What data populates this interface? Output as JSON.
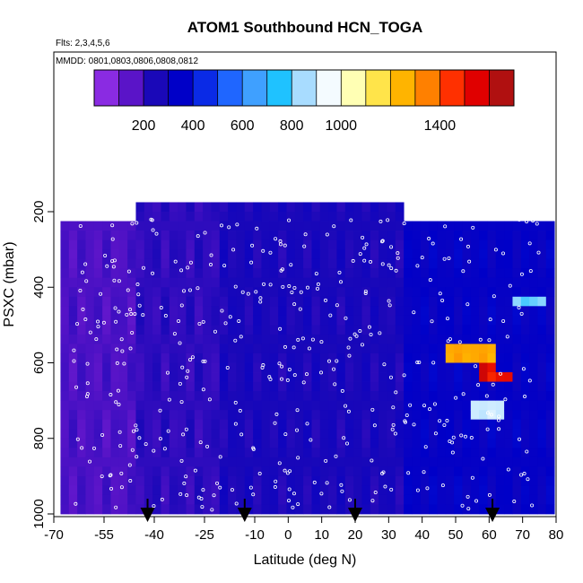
{
  "chart_data": {
    "type": "heatmap",
    "title": "ATOM1 Southbound HCN_TOGA",
    "annotations": [
      "Flts: 2,3,4,5,6",
      "MMDD: 0801,0803,0806,0808,0812"
    ],
    "xlabel": "Latitude (deg N)",
    "ylabel": "PSXC (mbar)",
    "xlim": [
      -70,
      80
    ],
    "ylim": [
      1000,
      100
    ],
    "x_ticks": [
      -70,
      -55,
      -40,
      -25,
      -10,
      0,
      10,
      20,
      30,
      40,
      50,
      60,
      70,
      80
    ],
    "y_ticks": [
      200,
      400,
      600,
      800,
      1000
    ],
    "colorbar": {
      "range": [
        0,
        1700
      ],
      "tick_values": [
        200,
        400,
        600,
        800,
        1000,
        1400
      ],
      "colors": [
        "#8a2be2",
        "#5a14c8",
        "#1a08b8",
        "#0000c8",
        "#0a2ae6",
        "#1f66ff",
        "#3fa0ff",
        "#1fc2ff",
        "#a8dcff",
        "#f4fbff",
        "#ffffb4",
        "#ffe44a",
        "#ffb400",
        "#ff8000",
        "#ff3000",
        "#e00000",
        "#b01010"
      ]
    },
    "data_extent": {
      "lat_min": -68,
      "lat_max": 80,
      "pressure_top": 175,
      "pressure_bottom": 1000
    },
    "features": [
      {
        "lat": [
          -68,
          -45
        ],
        "pressure": [
          220,
          1000
        ],
        "value": 130
      },
      {
        "lat": [
          -45,
          -20
        ],
        "pressure": [
          175,
          1000
        ],
        "value": 180
      },
      {
        "lat": [
          -20,
          35
        ],
        "pressure": [
          175,
          1000
        ],
        "value": 220
      },
      {
        "lat": [
          35,
          80
        ],
        "pressure": [
          220,
          1000
        ],
        "value": 300
      },
      {
        "lat": [
          48,
          62
        ],
        "pressure": [
          540,
          590
        ],
        "value": 1300
      },
      {
        "lat": [
          58,
          62
        ],
        "pressure": [
          590,
          640
        ],
        "value": 1600
      },
      {
        "lat": [
          60,
          68
        ],
        "pressure": [
          630,
          650
        ],
        "value": 1550
      },
      {
        "lat": [
          54,
          65
        ],
        "pressure": [
          700,
          760
        ],
        "value": 900
      },
      {
        "lat": [
          66,
          76
        ],
        "pressure": [
          420,
          460
        ],
        "value": 800
      }
    ],
    "flight_markers_lat": [
      -42,
      -13,
      20,
      61
    ]
  }
}
